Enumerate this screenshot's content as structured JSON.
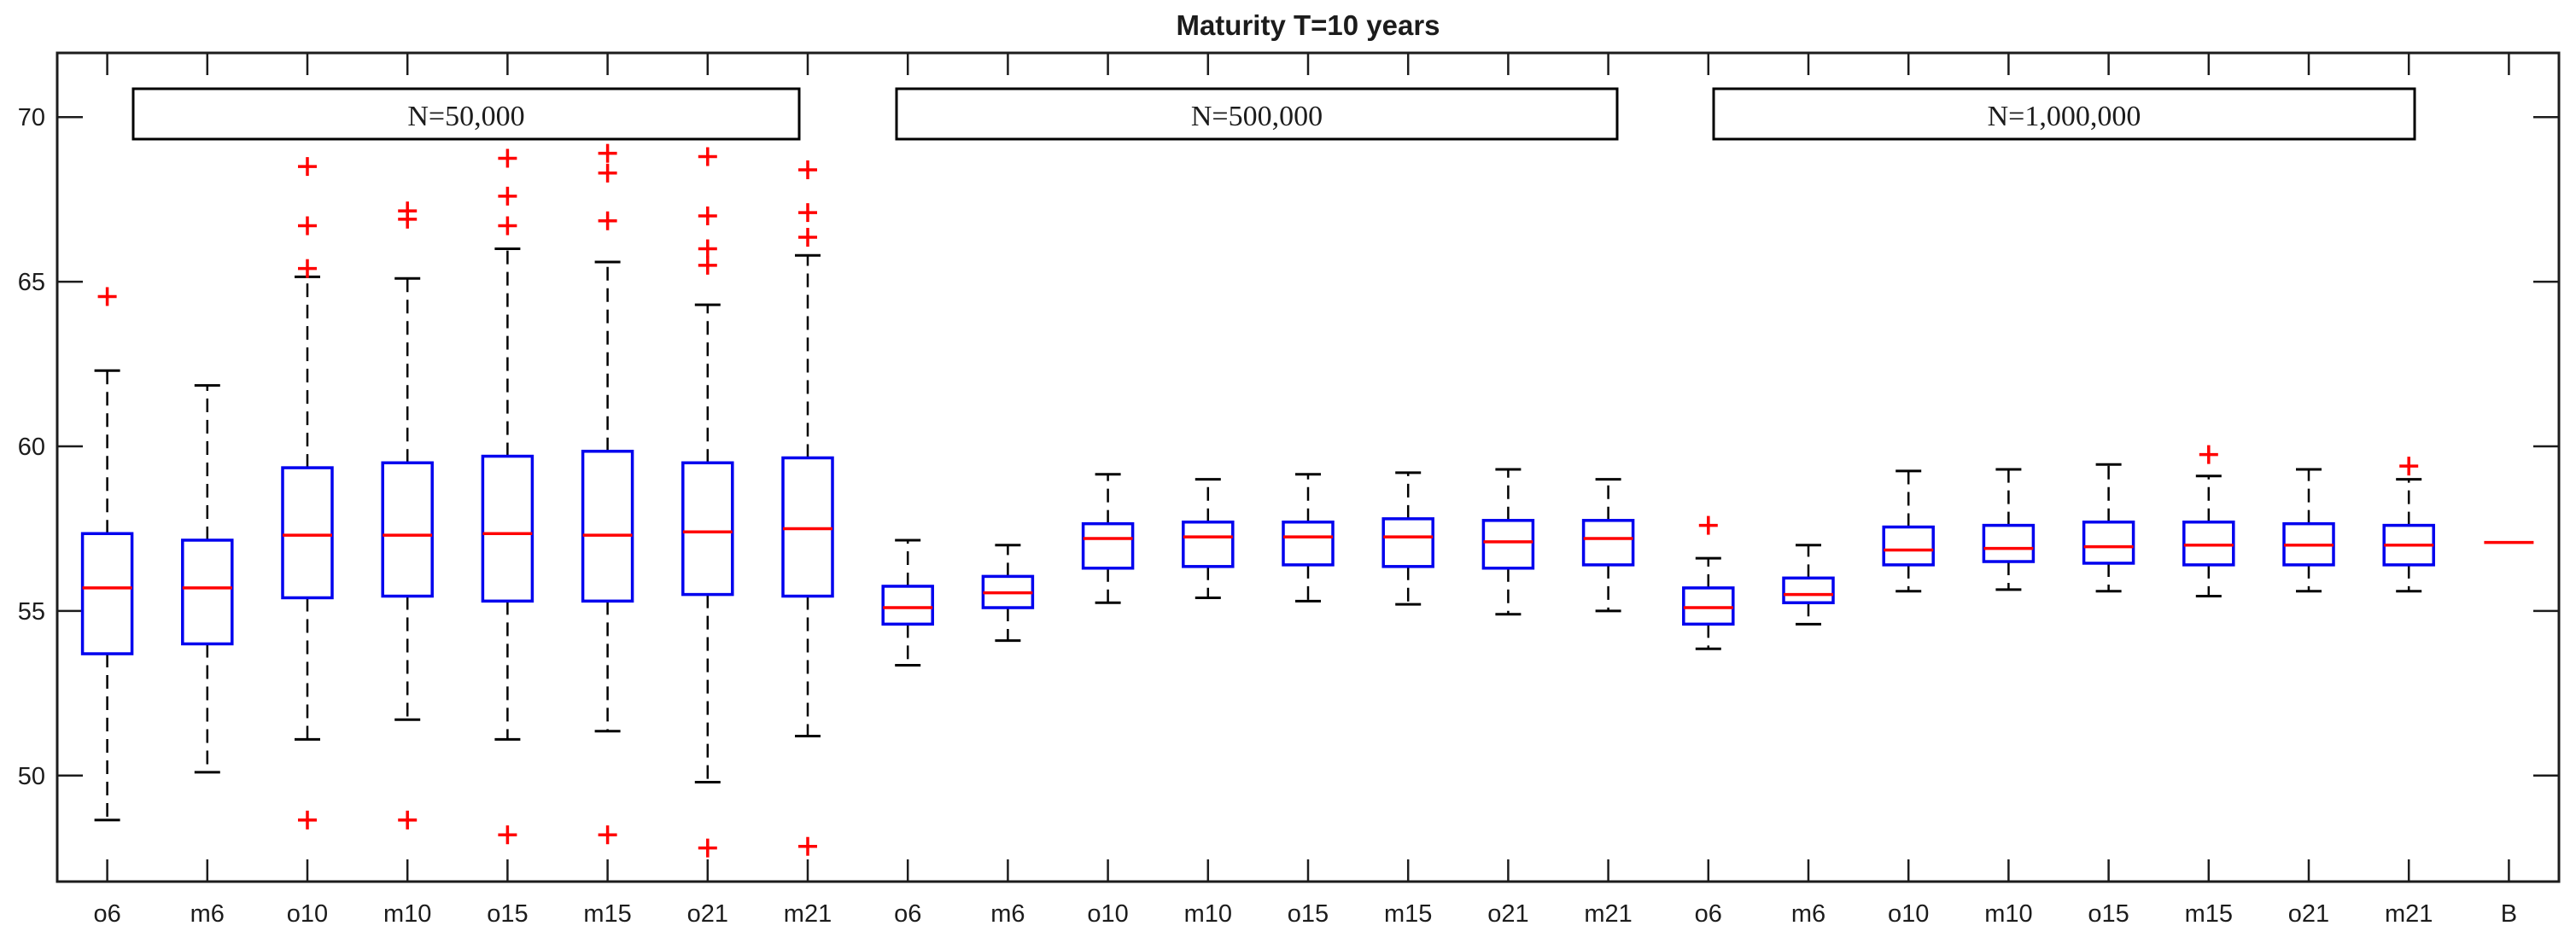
{
  "title": "Maturity T=10 years",
  "group_labels": [
    "N=50,000",
    "N=500,000",
    "N=1,000,000"
  ],
  "y_tick_labels": [
    "50",
    "55",
    "60",
    "65",
    "70"
  ],
  "colors": {
    "box": "#0000ee",
    "median": "#ff0000",
    "outlier": "#ff0000",
    "whisker": "#000000",
    "frame": "#1c1c1c",
    "text": "#1c1c1c",
    "label_box_fill": "#ffffff",
    "label_box_border": "#000000"
  },
  "chart_data": {
    "type": "boxplot",
    "title": "Maturity T=10 years",
    "xlabel": "",
    "ylabel": "",
    "ylim": [
      46.8,
      71.95
    ],
    "y_ticks": [
      50,
      55,
      60,
      65,
      70
    ],
    "grid": false,
    "legend": false,
    "group_annotations": [
      "N=50,000",
      "N=500,000",
      "N=1,000,000"
    ],
    "categories": [
      "o6",
      "m6",
      "o10",
      "m10",
      "o15",
      "m15",
      "o21",
      "m21",
      "o6",
      "m6",
      "o10",
      "m10",
      "o15",
      "m15",
      "o21",
      "m21",
      "o6",
      "m6",
      "o10",
      "m10",
      "o15",
      "m15",
      "o21",
      "m21",
      "B"
    ],
    "series": [
      {
        "group": "N=50,000",
        "label": "o6",
        "whisker_low": 48.65,
        "q1": 53.7,
        "median": 55.7,
        "q3": 57.35,
        "whisker_high": 62.3,
        "outliers": [
          64.55
        ]
      },
      {
        "group": "N=50,000",
        "label": "m6",
        "whisker_low": 50.1,
        "q1": 54.0,
        "median": 55.7,
        "q3": 57.15,
        "whisker_high": 61.85,
        "outliers": []
      },
      {
        "group": "N=50,000",
        "label": "o10",
        "whisker_low": 51.1,
        "q1": 55.4,
        "median": 57.3,
        "q3": 59.35,
        "whisker_high": 65.15,
        "outliers": [
          68.5,
          66.7,
          65.4,
          48.65
        ]
      },
      {
        "group": "N=50,000",
        "label": "m10",
        "whisker_low": 51.7,
        "q1": 55.45,
        "median": 57.3,
        "q3": 59.5,
        "whisker_high": 65.1,
        "outliers": [
          67.15,
          66.9,
          48.65
        ]
      },
      {
        "group": "N=50,000",
        "label": "o15",
        "whisker_low": 51.1,
        "q1": 55.3,
        "median": 57.35,
        "q3": 59.7,
        "whisker_high": 66.0,
        "outliers": [
          68.75,
          67.6,
          66.7,
          48.2
        ]
      },
      {
        "group": "N=50,000",
        "label": "m15",
        "whisker_low": 51.35,
        "q1": 55.3,
        "median": 57.3,
        "q3": 59.85,
        "whisker_high": 65.6,
        "outliers": [
          68.9,
          68.3,
          66.85,
          48.2
        ]
      },
      {
        "group": "N=50,000",
        "label": "o21",
        "whisker_low": 49.8,
        "q1": 55.5,
        "median": 57.4,
        "q3": 59.5,
        "whisker_high": 64.3,
        "outliers": [
          68.8,
          67.0,
          66.0,
          65.5,
          47.8
        ]
      },
      {
        "group": "N=50,000",
        "label": "m21",
        "whisker_low": 51.2,
        "q1": 55.45,
        "median": 57.5,
        "q3": 59.65,
        "whisker_high": 65.8,
        "outliers": [
          68.4,
          67.1,
          66.35,
          47.85
        ]
      },
      {
        "group": "N=500,000",
        "label": "o6",
        "whisker_low": 53.35,
        "q1": 54.6,
        "median": 55.1,
        "q3": 55.75,
        "whisker_high": 57.15,
        "outliers": []
      },
      {
        "group": "N=500,000",
        "label": "m6",
        "whisker_low": 54.1,
        "q1": 55.1,
        "median": 55.55,
        "q3": 56.05,
        "whisker_high": 57.0,
        "outliers": []
      },
      {
        "group": "N=500,000",
        "label": "o10",
        "whisker_low": 55.25,
        "q1": 56.3,
        "median": 57.2,
        "q3": 57.65,
        "whisker_high": 59.15,
        "outliers": []
      },
      {
        "group": "N=500,000",
        "label": "m10",
        "whisker_low": 55.4,
        "q1": 56.35,
        "median": 57.25,
        "q3": 57.7,
        "whisker_high": 59.0,
        "outliers": []
      },
      {
        "group": "N=500,000",
        "label": "o15",
        "whisker_low": 55.3,
        "q1": 56.4,
        "median": 57.25,
        "q3": 57.7,
        "whisker_high": 59.15,
        "outliers": []
      },
      {
        "group": "N=500,000",
        "label": "m15",
        "whisker_low": 55.2,
        "q1": 56.35,
        "median": 57.25,
        "q3": 57.8,
        "whisker_high": 59.2,
        "outliers": []
      },
      {
        "group": "N=500,000",
        "label": "o21",
        "whisker_low": 54.9,
        "q1": 56.3,
        "median": 57.1,
        "q3": 57.75,
        "whisker_high": 59.3,
        "outliers": []
      },
      {
        "group": "N=500,000",
        "label": "m21",
        "whisker_low": 55.0,
        "q1": 56.4,
        "median": 57.2,
        "q3": 57.75,
        "whisker_high": 59.0,
        "outliers": []
      },
      {
        "group": "N=1,000,000",
        "label": "o6",
        "whisker_low": 53.85,
        "q1": 54.6,
        "median": 55.1,
        "q3": 55.7,
        "whisker_high": 56.6,
        "outliers": [
          57.6
        ]
      },
      {
        "group": "N=1,000,000",
        "label": "m6",
        "whisker_low": 54.6,
        "q1": 55.25,
        "median": 55.5,
        "q3": 56.0,
        "whisker_high": 57.0,
        "outliers": []
      },
      {
        "group": "N=1,000,000",
        "label": "o10",
        "whisker_low": 55.6,
        "q1": 56.4,
        "median": 56.85,
        "q3": 57.55,
        "whisker_high": 59.25,
        "outliers": []
      },
      {
        "group": "N=1,000,000",
        "label": "m10",
        "whisker_low": 55.65,
        "q1": 56.5,
        "median": 56.9,
        "q3": 57.6,
        "whisker_high": 59.3,
        "outliers": []
      },
      {
        "group": "N=1,000,000",
        "label": "o15",
        "whisker_low": 55.6,
        "q1": 56.45,
        "median": 56.95,
        "q3": 57.7,
        "whisker_high": 59.45,
        "outliers": []
      },
      {
        "group": "N=1,000,000",
        "label": "m15",
        "whisker_low": 55.45,
        "q1": 56.4,
        "median": 57.0,
        "q3": 57.7,
        "whisker_high": 59.1,
        "outliers": [
          59.75
        ]
      },
      {
        "group": "N=1,000,000",
        "label": "o21",
        "whisker_low": 55.6,
        "q1": 56.4,
        "median": 57.0,
        "q3": 57.65,
        "whisker_high": 59.3,
        "outliers": []
      },
      {
        "group": "N=1,000,000",
        "label": "m21",
        "whisker_low": 55.6,
        "q1": 56.4,
        "median": 57.0,
        "q3": 57.6,
        "whisker_high": 59.0,
        "outliers": [
          59.4
        ]
      },
      {
        "group": "",
        "label": "B",
        "line_only": true,
        "median": 57.08,
        "outliers": []
      }
    ]
  }
}
